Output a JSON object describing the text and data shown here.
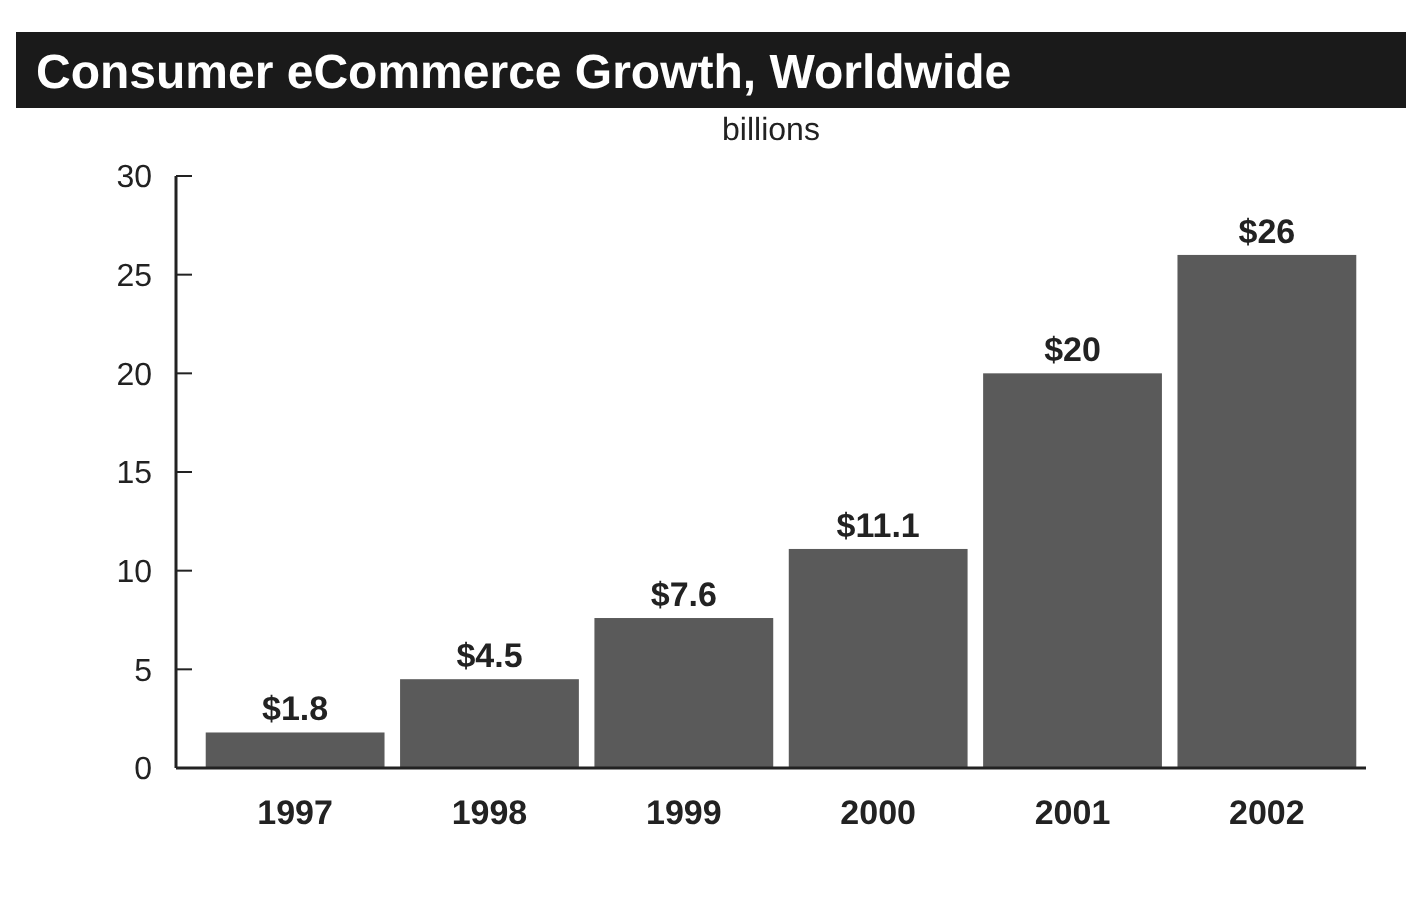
{
  "chart_data": {
    "type": "bar",
    "title": "Consumer eCommerce Growth, Worldwide",
    "ylabel": "billions",
    "categories": [
      "1997",
      "1998",
      "1999",
      "2000",
      "2001",
      "2002"
    ],
    "values": [
      1.8,
      4.5,
      7.6,
      11.1,
      20,
      26
    ],
    "value_labels": [
      "$1.8",
      "$4.5",
      "$7.6",
      "$11.1",
      "$20",
      "$26"
    ],
    "color": "#5a5a5a",
    "ylim": [
      0,
      30
    ],
    "yticks": [
      0,
      5,
      10,
      15,
      20,
      25,
      30
    ],
    "grid": false
  }
}
